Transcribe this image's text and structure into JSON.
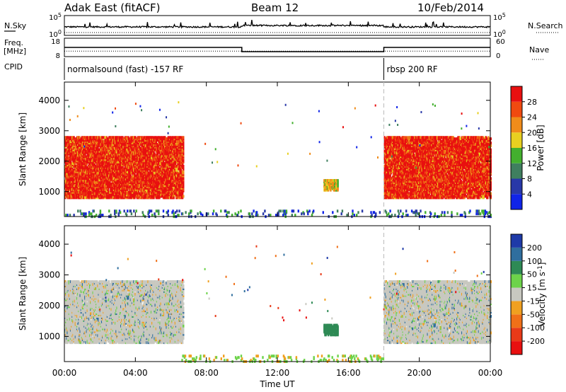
{
  "header": {
    "station": "Adak East (fitACF)",
    "beam": "Beam 12",
    "date": "10/Feb/2014"
  },
  "side_labels": {
    "nsky": "N.Sky",
    "freq_l1": "Freq.",
    "freq_l2": "[MHz]",
    "cpid": "CPID",
    "nsearch": "N.Search",
    "nave": "Nave"
  },
  "chart_data": [
    {
      "type": "line",
      "panel": "noise",
      "yticks_left": [
        "10^5",
        "10^0"
      ],
      "yticks_right": [
        "10^5",
        "10^0"
      ],
      "x_range_hours": [
        0,
        24
      ],
      "series": [
        {
          "name": "N.Sky",
          "style": "solid"
        },
        {
          "name": "N.Search",
          "style": "dotted"
        }
      ]
    },
    {
      "type": "line",
      "panel": "frequency",
      "yticks_left": [
        "18",
        "8"
      ],
      "yticks_right": [
        "60",
        "0"
      ],
      "x": [
        0,
        10,
        10,
        18,
        18,
        24
      ],
      "freq_mhz": [
        13.5,
        13.5,
        10.5,
        10.5,
        13.5,
        13.5
      ],
      "nave": [
        18,
        18,
        18,
        18,
        18,
        18
      ]
    },
    {
      "type": "table",
      "panel": "cpid",
      "programs": [
        {
          "label": "normalsound (fast) -157 RF",
          "start_hour": 0,
          "end_hour": 18
        },
        {
          "label": "rbsp 200 RF",
          "start_hour": 18,
          "end_hour": 24
        }
      ]
    },
    {
      "type": "heatmap",
      "panel": "power",
      "ylabel": "Slant Range [km]",
      "ylim": [
        180,
        4600
      ],
      "yticks": [
        1000,
        2000,
        3000,
        4000
      ],
      "x_range_hours": [
        0,
        24
      ],
      "colorbar_label": "Power [dB]",
      "colorbar_ticks": [
        "4",
        "8",
        "12",
        "16",
        "20",
        "24",
        "28"
      ],
      "colorbar_colors": [
        "#1024e8",
        "#2838a8",
        "#3f7f5f",
        "#43b02e",
        "#e8d020",
        "#f08c1a",
        "#f04a10",
        "#e81010"
      ],
      "regions": [
        {
          "t0": 0,
          "t1": 6.7,
          "r0": 800,
          "r1": 2800,
          "dominant": "high"
        },
        {
          "t0": 18,
          "t1": 24,
          "r0": 800,
          "r1": 2800,
          "dominant": "high"
        },
        {
          "t0": 14.6,
          "t1": 15.4,
          "r0": 1050,
          "r1": 1400,
          "dominant": "mid"
        },
        {
          "t0": 0,
          "t1": 24,
          "r0": 180,
          "r1": 400,
          "dominant": "low"
        }
      ]
    },
    {
      "type": "heatmap",
      "panel": "velocity",
      "ylabel": "Slant Range [km]",
      "ylim": [
        180,
        4600
      ],
      "yticks": [
        1000,
        2000,
        3000,
        4000
      ],
      "xlabel": "Time UT",
      "xticks": [
        "00:00",
        "04:00",
        "08:00",
        "12:00",
        "16:00",
        "20:00",
        "00:00"
      ],
      "x_range_hours": [
        0,
        24
      ],
      "colorbar_label": "Velocity [m s^-1]",
      "colorbar_ticks": [
        "200",
        "100",
        "50",
        "15",
        "-15",
        "-50",
        "-100",
        "-200"
      ],
      "colorbar_colors": [
        "#1e3aa8",
        "#2f6e9e",
        "#2e8a55",
        "#6dd34a",
        "#c8c8c0",
        "#f0a020",
        "#f07018",
        "#e83a18",
        "#e81010"
      ],
      "regions": [
        {
          "t0": 0,
          "t1": 6.7,
          "r0": 800,
          "r1": 2800,
          "dominant": "ground"
        },
        {
          "t0": 18,
          "t1": 24,
          "r0": 800,
          "r1": 2800,
          "dominant": "ground"
        },
        {
          "t0": 14.6,
          "t1": 15.4,
          "r0": 1050,
          "r1": 1400,
          "dominant": "positive"
        },
        {
          "t0": 6.5,
          "t1": 18,
          "r0": 180,
          "r1": 400,
          "dominant": "positive-small"
        }
      ]
    }
  ]
}
